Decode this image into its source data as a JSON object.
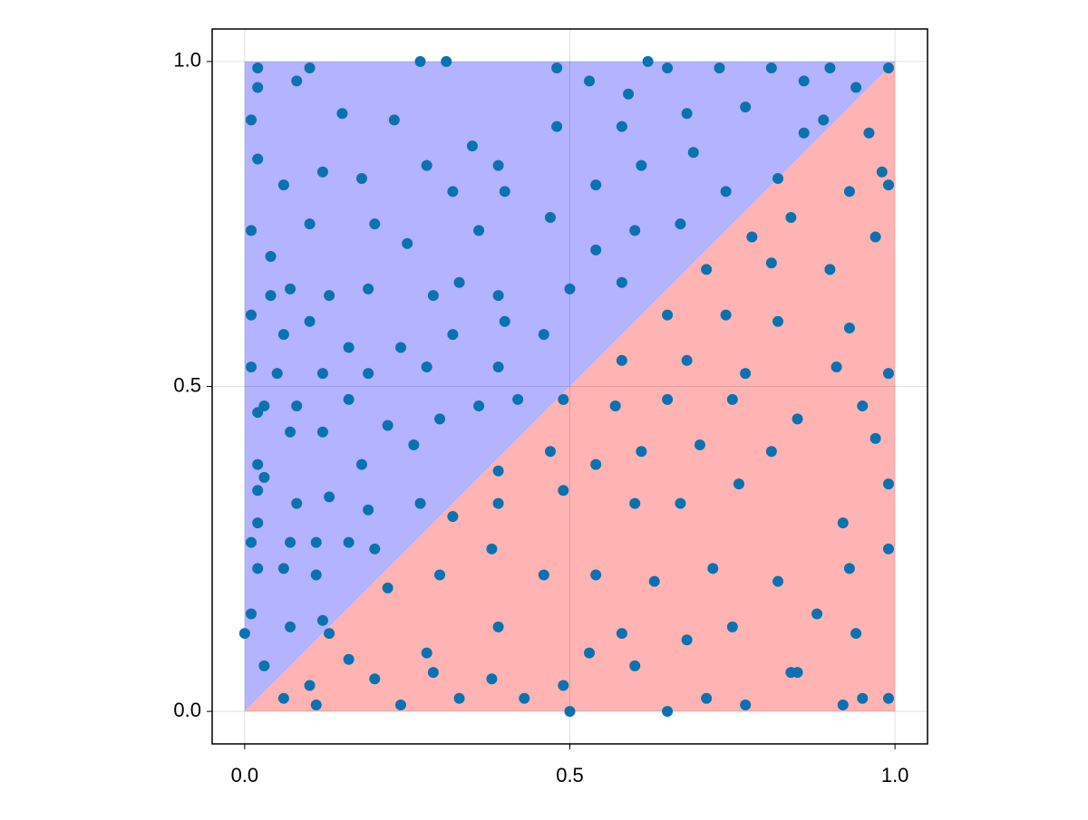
{
  "chart_data": {
    "type": "scatter",
    "color": "#0a72b0",
    "regions": [
      {
        "color": "#b3b3ff",
        "x": [
          0,
          0,
          1
        ],
        "y": [
          0,
          1,
          1
        ]
      },
      {
        "color": "#ffb3b3",
        "x": [
          0,
          1,
          1
        ],
        "y": [
          0,
          0,
          1
        ]
      }
    ],
    "x": [
      0.02,
      0.1,
      0.27,
      0.31,
      0.48,
      0.62,
      0.65,
      0.73,
      0.81,
      0.9,
      0.99,
      0.01,
      0.02,
      0.08,
      0.15,
      0.23,
      0.28,
      0.35,
      0.39,
      0.48,
      0.53,
      0.59,
      0.58,
      0.68,
      0.77,
      0.86,
      0.89,
      0.94,
      0.86,
      0.02,
      0.06,
      0.12,
      0.18,
      0.32,
      0.4,
      0.54,
      0.61,
      0.69,
      0.74,
      0.82,
      0.01,
      0.04,
      0.1,
      0.2,
      0.25,
      0.36,
      0.47,
      0.54,
      0.6,
      0.67,
      0.04,
      0.07,
      0.13,
      0.19,
      0.29,
      0.33,
      0.39,
      0.5,
      0.58,
      0.01,
      0.06,
      0.1,
      0.16,
      0.24,
      0.32,
      0.4,
      0.46,
      0.01,
      0.05,
      0.12,
      0.19,
      0.28,
      0.39,
      0.03,
      0.08,
      0.16,
      0.22,
      0.3,
      0.36,
      0.42,
      0.02,
      0.07,
      0.12,
      0.18,
      0.26,
      0.02,
      0.03,
      0.02,
      0.08,
      0.13,
      0.19,
      0.27,
      0.02,
      0.01,
      0.07,
      0.11,
      0.16,
      0.2,
      0.02,
      0.11,
      0.06,
      0.01,
      0.0,
      0.07,
      0.12,
      0.03,
      0.06,
      0.11,
      0.1,
      0.2,
      0.24,
      0.28,
      0.33,
      0.39,
      0.43,
      0.5,
      0.53,
      0.6,
      0.65,
      0.71,
      0.77,
      0.84,
      0.92,
      0.95,
      0.99,
      0.22,
      0.3,
      0.38,
      0.46,
      0.54,
      0.63,
      0.72,
      0.82,
      0.93,
      0.99,
      0.32,
      0.39,
      0.49,
      0.6,
      0.67,
      0.76,
      0.92,
      0.99,
      0.39,
      0.47,
      0.54,
      0.61,
      0.7,
      0.81,
      0.97,
      0.49,
      0.57,
      0.65,
      0.75,
      0.85,
      0.95,
      0.58,
      0.68,
      0.77,
      0.91,
      0.99,
      0.65,
      0.74,
      0.82,
      0.93,
      0.71,
      0.81,
      0.9,
      0.97,
      0.78,
      0.84,
      0.93,
      0.98,
      0.96,
      0.99,
      0.85,
      0.58,
      0.68,
      0.75,
      0.88,
      0.94,
      0.49,
      0.38,
      0.29,
      0.16,
      0.13
    ],
    "values": [
      0.99,
      0.99,
      1.0,
      1.0,
      0.99,
      1.0,
      0.99,
      0.99,
      0.99,
      0.99,
      0.99,
      0.91,
      0.96,
      0.97,
      0.92,
      0.91,
      0.84,
      0.87,
      0.84,
      0.9,
      0.97,
      0.95,
      0.9,
      0.92,
      0.93,
      0.97,
      0.91,
      0.96,
      0.89,
      0.85,
      0.81,
      0.83,
      0.82,
      0.8,
      0.8,
      0.81,
      0.84,
      0.86,
      0.8,
      0.82,
      0.74,
      0.7,
      0.75,
      0.75,
      0.72,
      0.74,
      0.76,
      0.71,
      0.74,
      0.75,
      0.64,
      0.65,
      0.64,
      0.65,
      0.64,
      0.66,
      0.64,
      0.65,
      0.66,
      0.61,
      0.58,
      0.6,
      0.56,
      0.56,
      0.58,
      0.6,
      0.58,
      0.53,
      0.52,
      0.52,
      0.52,
      0.53,
      0.53,
      0.47,
      0.47,
      0.48,
      0.44,
      0.45,
      0.47,
      0.48,
      0.46,
      0.43,
      0.43,
      0.38,
      0.41,
      0.38,
      0.36,
      0.34,
      0.32,
      0.33,
      0.31,
      0.32,
      0.29,
      0.26,
      0.26,
      0.26,
      0.26,
      0.25,
      0.22,
      0.21,
      0.22,
      0.15,
      0.12,
      0.13,
      0.14,
      0.07,
      0.02,
      0.01,
      0.04,
      0.05,
      0.01,
      0.09,
      0.02,
      0.13,
      0.02,
      0.0,
      0.09,
      0.07,
      0.0,
      0.02,
      0.01,
      0.06,
      0.01,
      0.02,
      0.02,
      0.19,
      0.21,
      0.25,
      0.21,
      0.21,
      0.2,
      0.22,
      0.2,
      0.22,
      0.25,
      0.3,
      0.32,
      0.34,
      0.32,
      0.32,
      0.35,
      0.29,
      0.35,
      0.37,
      0.4,
      0.38,
      0.4,
      0.41,
      0.4,
      0.42,
      0.48,
      0.47,
      0.48,
      0.48,
      0.45,
      0.47,
      0.54,
      0.54,
      0.52,
      0.53,
      0.52,
      0.61,
      0.61,
      0.6,
      0.59,
      0.68,
      0.69,
      0.68,
      0.73,
      0.73,
      0.76,
      0.8,
      0.83,
      0.89,
      0.81,
      0.06,
      0.12,
      0.11,
      0.13,
      0.15,
      0.12,
      0.04,
      0.05,
      0.06,
      0.08,
      0.12
    ],
    "xlim": [
      -0.05,
      1.05
    ],
    "ylim": [
      -0.05,
      1.05
    ],
    "xticks": [
      {
        "value": 0,
        "label": "0.0"
      },
      0.5,
      {
        "value": 1,
        "label": "1.0"
      }
    ],
    "yticks": [
      {
        "value": 0,
        "label": "0.0"
      },
      0.5,
      {
        "value": 1,
        "label": "1.0"
      }
    ],
    "grid": true
  }
}
